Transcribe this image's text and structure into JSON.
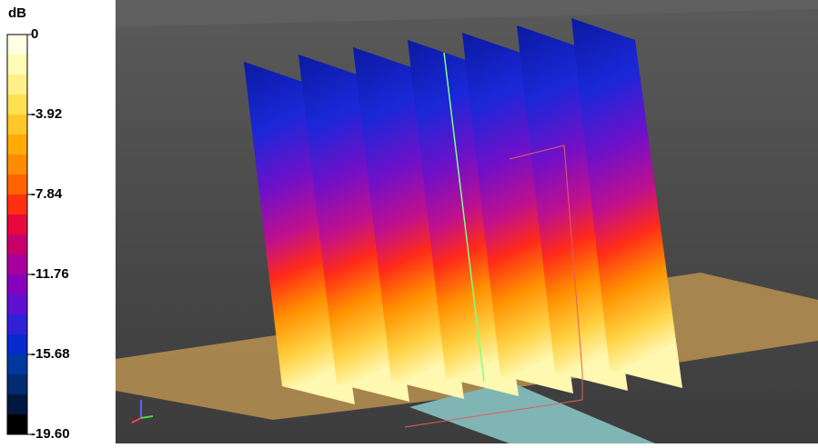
{
  "colorbar": {
    "unit": "dB",
    "ticks": [
      0,
      -3.92,
      -7.84,
      -11.76,
      -15.68,
      {
        "value": -19.6,
        "label": "-19.60"
      }
    ],
    "colors": [
      "#ffffe4",
      "#fffcb8",
      "#fff088",
      "#ffe050",
      "#ffc828",
      "#ffac08",
      "#ff8c00",
      "#ff6400",
      "#ff3010",
      "#e8083c",
      "#c8006c",
      "#a8009c",
      "#8800bc",
      "#6010d0",
      "#3020d8",
      "#0828d0",
      "#0038a0",
      "#002c70",
      "#001840",
      "#000000"
    ]
  }
}
